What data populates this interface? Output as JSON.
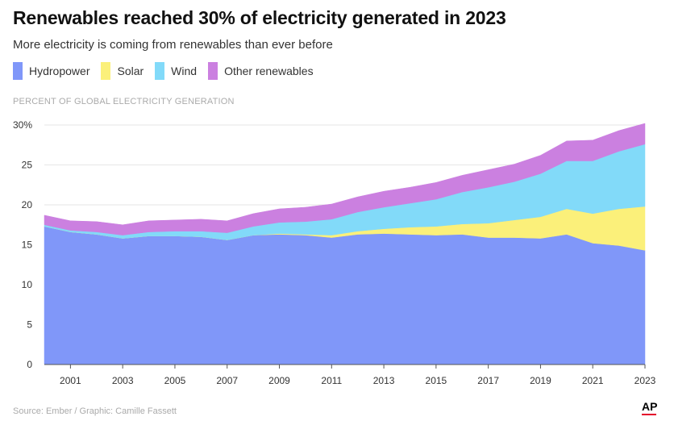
{
  "header": {
    "title": "Renewables reached 30% of electricity generated in 2023",
    "subtitle": "More electricity is coming from renewables than ever before"
  },
  "footer": {
    "source": "Source: Ember / Graphic: Camille Fassett",
    "logo": "AP"
  },
  "chart_data": {
    "type": "area",
    "stacked": true,
    "title": "Renewables reached 30% of electricity generated in 2023",
    "subtitle": "More electricity is coming from renewables than ever before",
    "ylabel": "PERCENT OF GLOBAL ELECTRICITY GENERATION",
    "xlabel": "",
    "ylim": [
      0,
      30
    ],
    "yticks": [
      0,
      5,
      10,
      15,
      20,
      25,
      30
    ],
    "ytick_labels": [
      "0",
      "5",
      "10",
      "15",
      "20",
      "25",
      "30%"
    ],
    "xlim": [
      2000,
      2023
    ],
    "xticks": [
      2001,
      2003,
      2005,
      2007,
      2009,
      2011,
      2013,
      2015,
      2017,
      2019,
      2021,
      2023
    ],
    "grid": "horizontal",
    "legend_position": "top-left",
    "x": [
      2000,
      2001,
      2002,
      2003,
      2004,
      2005,
      2006,
      2007,
      2008,
      2009,
      2010,
      2011,
      2012,
      2013,
      2014,
      2015,
      2016,
      2017,
      2018,
      2019,
      2020,
      2021,
      2022,
      2023
    ],
    "series": [
      {
        "name": "Hydropower",
        "color": "#8097f9",
        "values": [
          17.3,
          16.6,
          16.3,
          15.8,
          16.1,
          16.1,
          16.0,
          15.6,
          16.2,
          16.3,
          16.2,
          15.9,
          16.3,
          16.4,
          16.3,
          16.2,
          16.3,
          15.9,
          15.9,
          15.8,
          16.3,
          15.2,
          14.9,
          14.3
        ]
      },
      {
        "name": "Solar",
        "color": "#fbf07a",
        "values": [
          0.0,
          0.0,
          0.0,
          0.0,
          0.0,
          0.0,
          0.0,
          0.0,
          0.0,
          0.1,
          0.1,
          0.3,
          0.4,
          0.6,
          0.9,
          1.1,
          1.3,
          1.8,
          2.2,
          2.7,
          3.2,
          3.7,
          4.6,
          5.5
        ]
      },
      {
        "name": "Wind",
        "color": "#82daf9",
        "values": [
          0.2,
          0.2,
          0.3,
          0.4,
          0.5,
          0.6,
          0.7,
          0.9,
          1.1,
          1.4,
          1.6,
          2.0,
          2.4,
          2.7,
          3.0,
          3.4,
          4.0,
          4.5,
          4.8,
          5.4,
          6.0,
          6.6,
          7.2,
          7.8
        ]
      },
      {
        "name": "Other renewables",
        "color": "#cb80e0",
        "values": [
          1.2,
          1.2,
          1.3,
          1.3,
          1.4,
          1.4,
          1.5,
          1.5,
          1.6,
          1.7,
          1.8,
          1.9,
          1.9,
          2.0,
          2.0,
          2.1,
          2.1,
          2.2,
          2.2,
          2.3,
          2.5,
          2.6,
          2.6,
          2.6
        ]
      }
    ]
  }
}
